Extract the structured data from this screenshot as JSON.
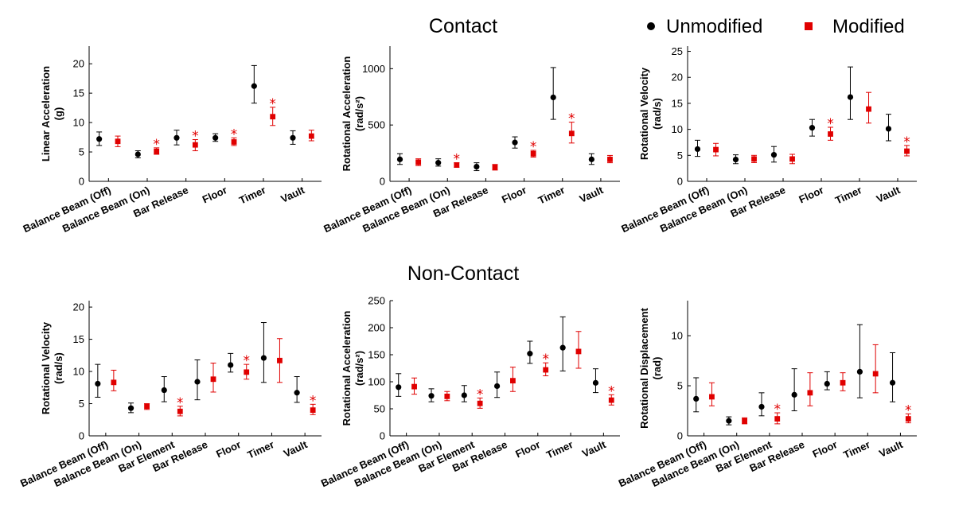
{
  "sections": {
    "contact": "Contact",
    "noncontact": "Non-Contact"
  },
  "legend": {
    "unmodified": "Unmodified",
    "modified": "Modified"
  },
  "colors": {
    "unmodified": "#000000",
    "modified": "#e00000"
  },
  "chart_data": [
    {
      "type": "scatter",
      "section": "Contact",
      "ylabel": "Linear Acceleration",
      "ylabel_unit": "(g)",
      "ylim": [
        0,
        23
      ],
      "yticks": [
        0,
        5,
        10,
        15,
        20
      ],
      "categories": [
        "Balance Beam (Off)",
        "Balance Beam (On)",
        "Bar Release",
        "Floor",
        "Timer",
        "Vault"
      ],
      "series": [
        {
          "name": "Unmodified",
          "values": [
            7.2,
            4.6,
            7.4,
            7.4,
            16.2,
            7.4
          ],
          "lo": [
            6.1,
            4.0,
            6.2,
            6.8,
            13.3,
            6.3
          ],
          "hi": [
            8.4,
            5.2,
            8.7,
            8.1,
            19.7,
            8.6
          ]
        },
        {
          "name": "Modified",
          "values": [
            6.8,
            5.1,
            6.2,
            6.7,
            11.0,
            7.7
          ],
          "lo": [
            5.9,
            4.6,
            5.2,
            6.1,
            9.5,
            6.9
          ],
          "hi": [
            7.7,
            5.7,
            7.1,
            7.4,
            12.6,
            8.7
          ]
        }
      ],
      "significant": [
        false,
        true,
        true,
        true,
        true,
        false
      ],
      "sig_label": "*"
    },
    {
      "type": "scatter",
      "section": "Contact",
      "ylabel": "Rotational Acceleration",
      "ylabel_unit": "(rad/s²)",
      "ylim": [
        0,
        1200
      ],
      "yticks": [
        0,
        500,
        1000
      ],
      "categories": [
        "Balance Beam (Off)",
        "Balance Beam (On)",
        "Bar Release",
        "Floor",
        "Timer",
        "Vault"
      ],
      "series": [
        {
          "name": "Unmodified",
          "values": [
            195,
            165,
            130,
            345,
            745,
            195
          ],
          "lo": [
            150,
            135,
            95,
            295,
            550,
            150
          ],
          "hi": [
            245,
            200,
            165,
            395,
            1010,
            245
          ]
        },
        {
          "name": "Modified",
          "values": [
            170,
            145,
            125,
            245,
            425,
            195
          ],
          "lo": [
            140,
            125,
            100,
            215,
            340,
            165
          ],
          "hi": [
            200,
            165,
            150,
            275,
            525,
            230
          ]
        }
      ],
      "significant": [
        false,
        true,
        false,
        true,
        true,
        false
      ],
      "sig_label": "*"
    },
    {
      "type": "scatter",
      "section": "Contact",
      "ylabel": "Rotational Velocity",
      "ylabel_unit": "(rad/s)",
      "ylim": [
        0,
        26
      ],
      "yticks": [
        0,
        5,
        10,
        15,
        20,
        25
      ],
      "categories": [
        "Balance Beam (Off)",
        "Balance Beam (On)",
        "Bar Release",
        "Floor",
        "Timer",
        "Vault"
      ],
      "series": [
        {
          "name": "Unmodified",
          "values": [
            6.2,
            4.2,
            5.1,
            10.3,
            16.2,
            10.1
          ],
          "lo": [
            4.8,
            3.4,
            3.7,
            8.7,
            11.9,
            7.8
          ],
          "hi": [
            7.9,
            5.1,
            6.7,
            11.9,
            22.0,
            12.9
          ]
        },
        {
          "name": "Modified",
          "values": [
            6.1,
            4.3,
            4.3,
            9.1,
            13.9,
            5.8
          ],
          "lo": [
            4.9,
            3.6,
            3.4,
            7.9,
            11.2,
            4.9
          ],
          "hi": [
            7.3,
            5.0,
            5.2,
            10.4,
            17.1,
            6.9
          ]
        }
      ],
      "significant": [
        false,
        false,
        false,
        true,
        false,
        true
      ],
      "sig_label": "*"
    },
    {
      "type": "scatter",
      "section": "Non-Contact",
      "ylabel": "Rotational Velocity",
      "ylabel_unit": "(rad/s)",
      "ylim": [
        0,
        21
      ],
      "yticks": [
        0,
        5,
        10,
        15,
        20
      ],
      "categories": [
        "Balance Beam (Off)",
        "Balance Beam (On)",
        "Bar Element",
        "Bar Release",
        "Floor",
        "Timer",
        "Vault"
      ],
      "series": [
        {
          "name": "Unmodified",
          "values": [
            8.1,
            4.3,
            7.1,
            8.4,
            11.0,
            12.1,
            6.7
          ],
          "lo": [
            6.0,
            3.6,
            5.3,
            5.6,
            9.9,
            8.3,
            5.2
          ],
          "hi": [
            11.1,
            5.1,
            9.2,
            11.8,
            12.8,
            17.6,
            9.2
          ]
        },
        {
          "name": "Modified",
          "values": [
            8.3,
            4.6,
            3.8,
            8.8,
            9.9,
            11.7,
            4.0
          ],
          "lo": [
            7.0,
            4.1,
            3.1,
            6.8,
            8.8,
            8.3,
            3.3
          ],
          "hi": [
            10.2,
            5.0,
            4.6,
            11.3,
            11.1,
            15.1,
            4.9
          ]
        }
      ],
      "significant": [
        false,
        false,
        true,
        false,
        true,
        false,
        true
      ],
      "sig_label": "*"
    },
    {
      "type": "scatter",
      "section": "Non-Contact",
      "ylabel": "Rotational Acceleration",
      "ylabel_unit": "(rad/s²)",
      "ylim": [
        0,
        250
      ],
      "yticks": [
        0,
        50,
        100,
        150,
        200,
        250
      ],
      "categories": [
        "Balance Beam (Off)",
        "Balance Beam (On)",
        "Bar Element",
        "Bar Release",
        "Floor",
        "Timer",
        "Vault"
      ],
      "series": [
        {
          "name": "Unmodified",
          "values": [
            90,
            74,
            75,
            92,
            152,
            163,
            98
          ],
          "lo": [
            73,
            63,
            63,
            71,
            134,
            120,
            80
          ],
          "hi": [
            115,
            87,
            93,
            118,
            175,
            220,
            124
          ]
        },
        {
          "name": "Modified",
          "values": [
            91,
            73,
            60,
            102,
            122,
            156,
            66
          ],
          "lo": [
            77,
            65,
            51,
            82,
            111,
            125,
            57
          ],
          "hi": [
            107,
            82,
            70,
            127,
            135,
            193,
            76
          ]
        }
      ],
      "significant": [
        false,
        false,
        true,
        false,
        true,
        false,
        true
      ],
      "sig_label": "*"
    },
    {
      "type": "scatter",
      "section": "Non-Contact",
      "ylabel": "Rotational Displacement",
      "ylabel_unit": "(rad)",
      "ylim": [
        0,
        13.5
      ],
      "yticks": [
        0,
        5,
        10
      ],
      "categories": [
        "Balance Beam (Off)",
        "Balance Beam (On)",
        "Bar Element",
        "Bar Release",
        "Floor",
        "Timer",
        "Vault"
      ],
      "series": [
        {
          "name": "Unmodified",
          "values": [
            3.7,
            1.5,
            2.9,
            4.1,
            5.2,
            6.4,
            5.3
          ],
          "lo": [
            2.4,
            1.1,
            2.0,
            2.5,
            4.6,
            3.8,
            3.4
          ],
          "hi": [
            5.8,
            1.9,
            4.3,
            6.7,
            6.4,
            11.1,
            8.3
          ]
        },
        {
          "name": "Modified",
          "values": [
            3.9,
            1.5,
            1.7,
            4.3,
            5.3,
            6.2,
            1.7
          ],
          "lo": [
            3.0,
            1.2,
            1.2,
            3.0,
            4.5,
            4.3,
            1.3
          ],
          "hi": [
            5.3,
            1.8,
            2.3,
            6.3,
            6.3,
            9.1,
            2.2
          ]
        }
      ],
      "significant": [
        false,
        false,
        true,
        false,
        false,
        false,
        true
      ],
      "sig_label": "*"
    }
  ]
}
